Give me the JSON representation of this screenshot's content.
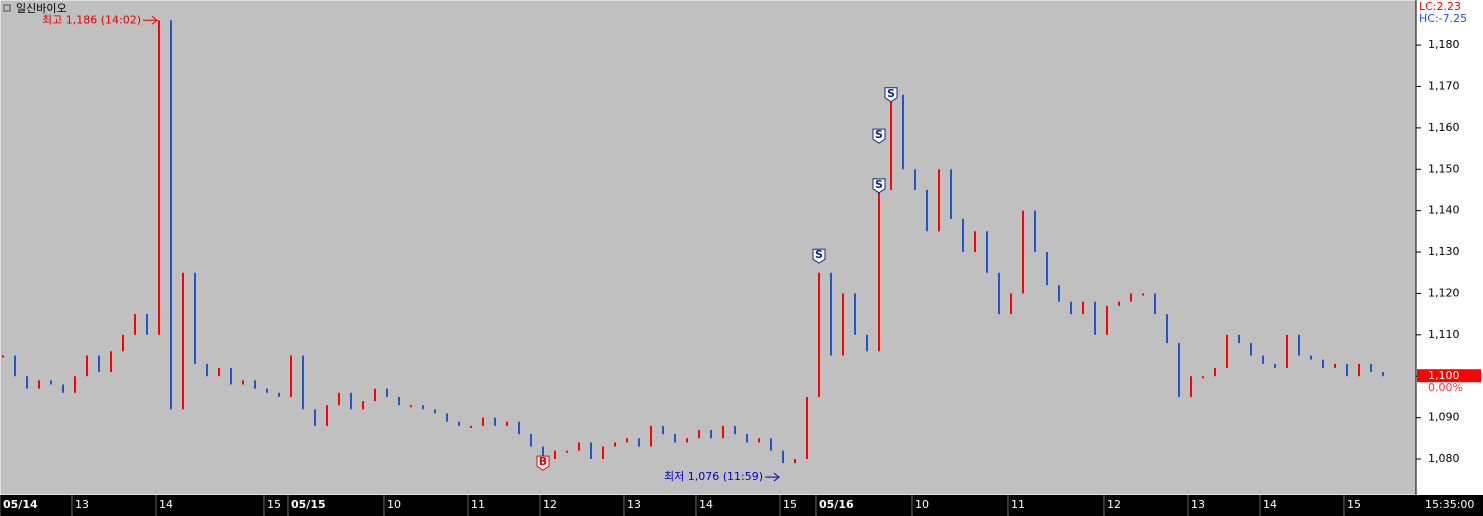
{
  "chart_data": {
    "type": "price-bars",
    "title": "일신바이오",
    "info": {
      "lc": "LC:2.23",
      "hc": "HC:-7.25"
    },
    "last": {
      "value": 1100,
      "label": "1,100",
      "change": "0.00%"
    },
    "end_time": "15:35:00",
    "annotations": {
      "high": "최고 1,186 (14:02)",
      "low": "최저 1,076 (11:59)"
    },
    "up_color": "#ff0000",
    "down_color": "#2255cc",
    "values": [
      1105,
      1100,
      1097,
      1099,
      1098,
      1096,
      1100,
      1105,
      1101,
      1106,
      1110,
      1115,
      1110,
      1186,
      1092,
      1125,
      1103,
      1100,
      1102,
      1098,
      1099,
      1097,
      1096,
      1095,
      1105,
      1092,
      1088,
      1093,
      1096,
      1092,
      1094,
      1097,
      1095,
      1093,
      1093,
      1092,
      1091,
      1089,
      1088,
      1088,
      1090,
      1088,
      1089,
      1086,
      1083,
      1080,
      1082,
      1082,
      1084,
      1080,
      1083,
      1084,
      1085,
      1083,
      1088,
      1086,
      1084,
      1085,
      1087,
      1085,
      1088,
      1086,
      1084,
      1085,
      1082,
      1079,
      1080,
      1095,
      1125,
      1105,
      1120,
      1110,
      1106,
      1145,
      1168,
      1150,
      1145,
      1135,
      1150,
      1138,
      1130,
      1135,
      1125,
      1115,
      1120,
      1140,
      1130,
      1122,
      1118,
      1115,
      1118,
      1110,
      1117,
      1118,
      1120,
      1120,
      1115,
      1108,
      1095,
      1100,
      1100,
      1102,
      1110,
      1108,
      1105,
      1103,
      1102,
      1110,
      1105,
      1104,
      1102,
      1103,
      1100,
      1103,
      1101,
      1100
    ],
    "signals": [
      {
        "label": "S",
        "x": 68,
        "y": 1129
      },
      {
        "label": "S",
        "x": 73,
        "y": 1146
      },
      {
        "label": "S",
        "x": 73,
        "y": 1158
      },
      {
        "label": "S",
        "x": 74,
        "y": 1168
      },
      {
        "label": "B",
        "x": 45,
        "y": 1079
      }
    ],
    "xlim": [
      -0.25,
      117.75
    ],
    "xticks": [
      {
        "value": 0,
        "label": "05/14"
      },
      {
        "value": 6,
        "label": "13"
      },
      {
        "value": 13,
        "label": "14"
      },
      {
        "value": 22,
        "label": "15"
      },
      {
        "value": 24,
        "label": "05/15"
      },
      {
        "value": 32,
        "label": "10"
      },
      {
        "value": 39,
        "label": "11"
      },
      {
        "value": 45,
        "label": "12"
      },
      {
        "value": 52,
        "label": "13"
      },
      {
        "value": 58,
        "label": "14"
      },
      {
        "value": 65,
        "label": "15"
      },
      {
        "value": 68,
        "label": "05/16"
      },
      {
        "value": 76,
        "label": "10"
      },
      {
        "value": 84,
        "label": "11"
      },
      {
        "value": 92,
        "label": "12"
      },
      {
        "value": 99,
        "label": "13"
      },
      {
        "value": 105,
        "label": "14"
      },
      {
        "value": 112,
        "label": "15"
      }
    ],
    "ylim": [
      1071.3,
      1190.9
    ],
    "yticks": [
      {
        "value": 1080,
        "label": "1,080"
      },
      {
        "value": 1090,
        "label": "1,090"
      },
      {
        "value": 1100,
        "label": "1,100"
      },
      {
        "value": 1110,
        "label": "1,110"
      },
      {
        "value": 1120,
        "label": "1,120"
      },
      {
        "value": 1130,
        "label": "1,130"
      },
      {
        "value": 1140,
        "label": "1,140"
      },
      {
        "value": 1150,
        "label": "1,150"
      },
      {
        "value": 1160,
        "label": "1,160"
      },
      {
        "value": 1170,
        "label": "1,170"
      },
      {
        "value": 1180,
        "label": "1,180"
      }
    ]
  }
}
